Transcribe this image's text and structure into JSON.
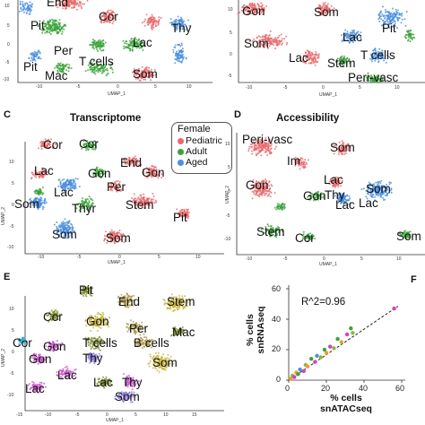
{
  "panels": {
    "A": {
      "labels": [
        "End",
        "Cor",
        "Pit",
        "Thy",
        "Per",
        "Lac",
        "Pit",
        "Mac",
        "T cells",
        "Som"
      ],
      "x_ticks": [
        "-10",
        "-5",
        "0",
        "5",
        "10"
      ],
      "y_ticks": [
        "10",
        "5",
        "0",
        "-5",
        "-10"
      ],
      "x_axis": "UMAP_1"
    },
    "B": {
      "labels": [
        "Gon",
        "Som",
        "Pit",
        "Som",
        "Lac",
        "Lac",
        "Stem",
        "T cells",
        "Peri-vasc"
      ],
      "x_ticks": [
        "-10",
        "-5",
        "0",
        "5",
        "10"
      ],
      "y_ticks": [
        "10",
        "5",
        "0",
        "-5"
      ],
      "x_axis": "UMAP_1"
    },
    "C": {
      "panel_letter": "C",
      "title": "Transcriptome",
      "labels": [
        "Cor",
        "Cor",
        "End",
        "Lac",
        "Gon",
        "Gon",
        "Per",
        "Lac",
        "Som",
        "Thyr",
        "Stem",
        "Pit",
        "Som",
        "Som"
      ],
      "legend": {
        "title": "Female",
        "items": [
          "Pediatric",
          "Adult",
          "Aged"
        ],
        "colors": [
          "#e8686a",
          "#3aa23a",
          "#4a8fe0"
        ]
      },
      "x_ticks": [
        "-10",
        "-5",
        "0",
        "5",
        "10"
      ],
      "y_ticks": [
        "10",
        "5",
        "0",
        "-5",
        "-10"
      ],
      "x_axis": "UMAP_1",
      "y_axis": "UMAP_2"
    },
    "D": {
      "panel_letter": "D",
      "title": "Accessibility",
      "labels": [
        "Peri-vasc",
        "Som",
        "Im",
        "Lac",
        "Gon",
        "Gon",
        "Thy",
        "Som",
        "Lac",
        "Lac",
        "Stem",
        "Cor",
        "Som"
      ],
      "x_ticks": [
        "-10",
        "-5",
        "0",
        "5",
        "10"
      ],
      "y_ticks": [
        "10",
        "5",
        "0",
        "-5",
        "-10"
      ],
      "x_axis": "UMAP_1",
      "y_axis": "UMAP_2"
    },
    "E": {
      "panel_letter": "E",
      "labels": [
        "Pit",
        "End",
        "Stem",
        "Cor",
        "Gon",
        "Per",
        "Mac",
        "Cor",
        "Gon",
        "T cells",
        "B cells",
        "Gon",
        "Thy",
        "Som",
        "Lac",
        "Lac",
        "Lac",
        "Thy",
        "Som"
      ],
      "x_ticks": [
        "-15",
        "-10",
        "-5",
        "0",
        "5",
        "10",
        "15"
      ],
      "y_ticks": [
        "10",
        "5",
        "0",
        "-5",
        "-10"
      ],
      "x_axis": "UMAP_1",
      "y_axis": "UMAP_2"
    },
    "F": {
      "panel_letter": "F",
      "annotation": "R^2=0.96",
      "xlabel_line1": "% cells",
      "xlabel_line2": "snATACseq",
      "ylabel_line1": "% cells",
      "ylabel_line2": "snRNAseq",
      "x_ticks": [
        "0",
        "20",
        "40",
        "60"
      ],
      "y_ticks": [
        "0",
        "20",
        "40",
        "60"
      ]
    }
  },
  "chart_data": {
    "type": "scatter",
    "title": "",
    "xlabel": "% cells snATACseq",
    "ylabel": "% cells snRNAseq",
    "xlim": [
      0,
      60
    ],
    "ylim": [
      0,
      60
    ],
    "annotation": "R^2=0.96",
    "trend_line": "dashed",
    "points": [
      {
        "x": 1,
        "y": 1,
        "color": "#e8a030"
      },
      {
        "x": 2,
        "y": 3,
        "color": "#8fb83a"
      },
      {
        "x": 3,
        "y": 2,
        "color": "#d040c0"
      },
      {
        "x": 4,
        "y": 5,
        "color": "#e8a030"
      },
      {
        "x": 5,
        "y": 4,
        "color": "#3aa23a"
      },
      {
        "x": 6,
        "y": 7,
        "color": "#4a8fe0"
      },
      {
        "x": 8,
        "y": 6,
        "color": "#d040c0"
      },
      {
        "x": 9,
        "y": 10,
        "color": "#8fb83a"
      },
      {
        "x": 10,
        "y": 9,
        "color": "#e8a030"
      },
      {
        "x": 12,
        "y": 14,
        "color": "#3aa23a"
      },
      {
        "x": 14,
        "y": 12,
        "color": "#d040c0"
      },
      {
        "x": 15,
        "y": 16,
        "color": "#4a8fe0"
      },
      {
        "x": 17,
        "y": 15,
        "color": "#8fb83a"
      },
      {
        "x": 19,
        "y": 20,
        "color": "#3aa23a"
      },
      {
        "x": 20,
        "y": 18,
        "color": "#e8a030"
      },
      {
        "x": 22,
        "y": 22,
        "color": "#d040c0"
      },
      {
        "x": 24,
        "y": 21,
        "color": "#8fb83a"
      },
      {
        "x": 26,
        "y": 27,
        "color": "#3aa23a"
      },
      {
        "x": 28,
        "y": 25,
        "color": "#e8a030"
      },
      {
        "x": 31,
        "y": 30,
        "color": "#d040c0"
      },
      {
        "x": 33,
        "y": 34,
        "color": "#3aa23a"
      },
      {
        "x": 34,
        "y": 31,
        "color": "#8fb83a"
      },
      {
        "x": 56,
        "y": 47,
        "color": "#d040c0"
      }
    ]
  }
}
